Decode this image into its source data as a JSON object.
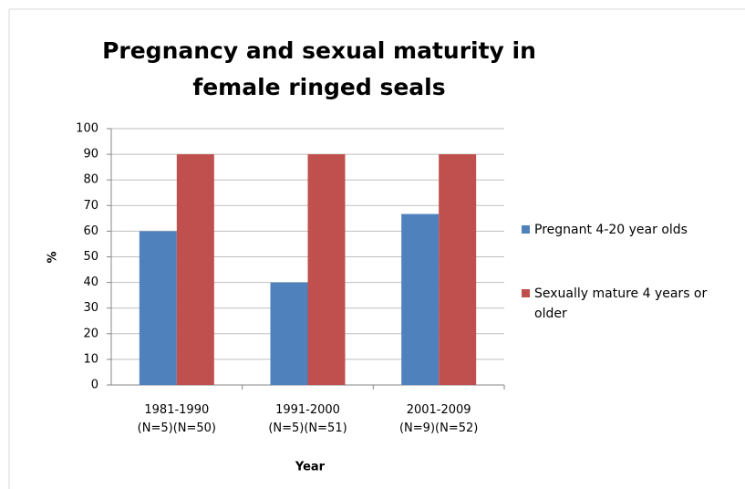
{
  "chart_data": {
    "type": "bar",
    "title": "Pregnancy and sexual maturity in female ringed seals",
    "x_label": "Year",
    "y_label": "%",
    "categories": [
      "1981-1990\n(N=5)(N=50)",
      "1991-2000\n(N=5)(N=51)",
      "2001-2009\n(N=9)(N=52)"
    ],
    "series": [
      {
        "name": "Pregnant 4-20 year olds",
        "color": "#4f81bd",
        "values": [
          60,
          40,
          66.7
        ]
      },
      {
        "name": "Sexually mature 4 years or older",
        "color": "#c0504d",
        "values": [
          90,
          90,
          90
        ]
      }
    ],
    "ylim": [
      0,
      100
    ],
    "yticks": [
      0,
      10,
      20,
      30,
      40,
      50,
      60,
      70,
      80,
      90,
      100
    ],
    "grid": true,
    "legend": "right"
  }
}
